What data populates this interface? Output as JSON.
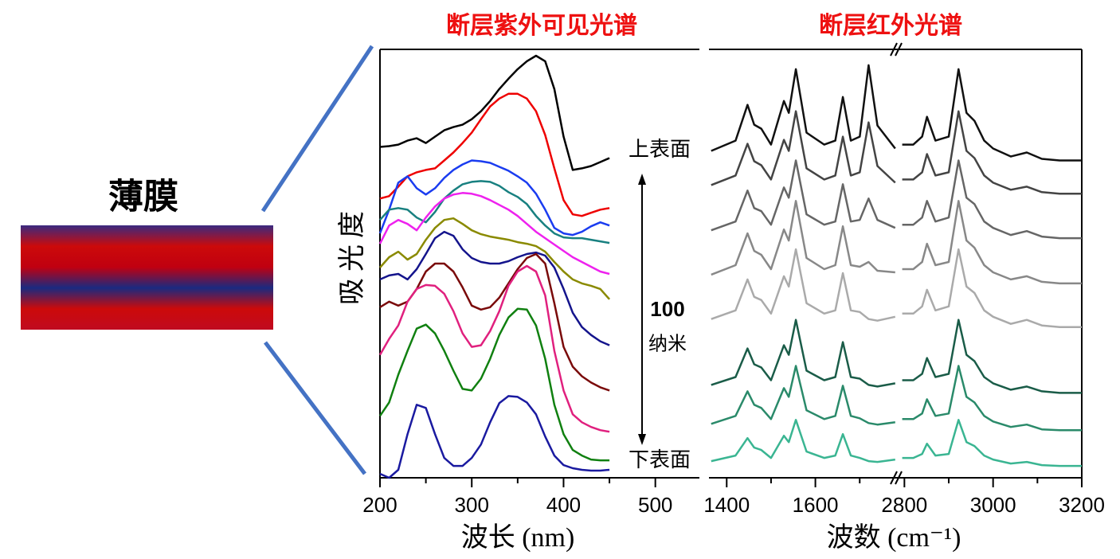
{
  "film_label": "薄膜",
  "chart_data": [
    {
      "type": "line",
      "title": "断层紫外可见光谱",
      "xlabel": "波长 (nm)",
      "ylabel": "吸光度",
      "annotations": [
        "上表面",
        "下表面",
        "100",
        "纳米"
      ],
      "xlim": [
        200,
        548
      ],
      "xticks": [
        200,
        300,
        400,
        500
      ],
      "xminorticks": [
        250,
        350,
        450
      ],
      "ylim": [
        0,
        540
      ],
      "x": [
        200,
        210,
        220,
        230,
        240,
        250,
        260,
        270,
        280,
        290,
        300,
        310,
        320,
        330,
        340,
        350,
        360,
        370,
        380,
        390,
        400,
        410,
        420,
        430,
        440,
        450
      ],
      "series": [
        {
          "color": "#000000",
          "values": [
            417,
            418,
            420,
            425,
            428,
            422,
            430,
            438,
            442,
            445,
            452,
            462,
            475,
            490,
            503,
            515,
            525,
            532,
            525,
            490,
            430,
            388,
            390,
            393,
            398,
            403
          ]
        },
        {
          "color": "#ee0000",
          "values": [
            352,
            355,
            367,
            380,
            385,
            388,
            390,
            400,
            410,
            422,
            435,
            452,
            468,
            478,
            484,
            484,
            478,
            462,
            432,
            390,
            350,
            332,
            330,
            334,
            338,
            340
          ]
        },
        {
          "color": "#1a3cf0",
          "values": [
            308,
            338,
            372,
            380,
            365,
            357,
            365,
            378,
            388,
            395,
            400,
            399,
            397,
            392,
            387,
            380,
            372,
            358,
            338,
            315,
            308,
            306,
            310,
            317,
            322,
            318
          ]
        },
        {
          "color": "#188080",
          "values": [
            325,
            338,
            340,
            338,
            328,
            322,
            335,
            352,
            362,
            370,
            373,
            374,
            373,
            368,
            360,
            354,
            345,
            330,
            318,
            308,
            303,
            302,
            302,
            300,
            298,
            296
          ]
        },
        {
          "color": "#ee22ee",
          "values": [
            295,
            318,
            325,
            320,
            312,
            328,
            342,
            352,
            357,
            359,
            358,
            355,
            350,
            344,
            338,
            330,
            320,
            310,
            302,
            294,
            286,
            278,
            272,
            266,
            260,
            257
          ]
        },
        {
          "color": "#8a8a00",
          "values": [
            265,
            278,
            285,
            275,
            282,
            300,
            315,
            325,
            327,
            320,
            312,
            307,
            304,
            302,
            300,
            297,
            295,
            292,
            285,
            272,
            260,
            250,
            245,
            242,
            238,
            225
          ]
        },
        {
          "color": "#14148c",
          "values": [
            250,
            255,
            257,
            250,
            263,
            282,
            302,
            310,
            305,
            288,
            277,
            272,
            270,
            270,
            273,
            278,
            282,
            284,
            280,
            265,
            238,
            208,
            190,
            180,
            172,
            167
          ]
        },
        {
          "color": "#7a0a0a",
          "values": [
            215,
            222,
            217,
            222,
            238,
            260,
            270,
            270,
            260,
            240,
            217,
            212,
            215,
            227,
            245,
            263,
            277,
            282,
            270,
            220,
            165,
            140,
            128,
            120,
            114,
            110
          ]
        },
        {
          "color": "#e0207e",
          "values": [
            155,
            175,
            192,
            222,
            238,
            243,
            242,
            232,
            210,
            182,
            165,
            167,
            185,
            210,
            242,
            260,
            267,
            260,
            230,
            160,
            110,
            80,
            70,
            64,
            60,
            58
          ]
        },
        {
          "color": "#108010",
          "values": [
            78,
            95,
            130,
            160,
            188,
            193,
            182,
            160,
            135,
            112,
            110,
            125,
            150,
            180,
            202,
            213,
            212,
            192,
            150,
            92,
            55,
            35,
            28,
            23,
            22,
            22
          ]
        },
        {
          "color": "#1a1aa0",
          "values": [
            5,
            0,
            10,
            55,
            92,
            88,
            55,
            25,
            15,
            15,
            25,
            42,
            70,
            94,
            103,
            102,
            95,
            80,
            52,
            28,
            16,
            12,
            10,
            9,
            9,
            10
          ]
        }
      ]
    },
    {
      "type": "line",
      "title": "断层红外光谱",
      "xlabel": "波数 (cm⁻¹)",
      "xlim": [
        1360,
        3200
      ],
      "xbreak": [
        1780,
        2790
      ],
      "xticks": [
        1400,
        1600,
        2800,
        3000,
        3200
      ],
      "xminorticks": [
        1500,
        1700,
        2900,
        3100
      ],
      "ylim": [
        0,
        540
      ],
      "x": [
        1365,
        1420,
        1447,
        1462,
        1478,
        1500,
        1529,
        1540,
        1556,
        1580,
        1620,
        1645,
        1662,
        1680,
        1700,
        1720,
        1740,
        1780,
        2795,
        2820,
        2840,
        2851,
        2870,
        2900,
        2922,
        2940,
        2958,
        2980,
        3000,
        3040,
        3076,
        3110,
        3150,
        3200
      ],
      "series": [
        {
          "color": "#111111",
          "values": [
            412,
            425,
            470,
            445,
            440,
            420,
            475,
            460,
            515,
            435,
            420,
            425,
            480,
            425,
            430,
            520,
            444,
            415,
            420,
            420,
            430,
            455,
            425,
            430,
            515,
            460,
            450,
            425,
            415,
            405,
            410,
            402,
            400,
            400
          ]
        },
        {
          "color": "#444444",
          "values": [
            369,
            381,
            421,
            399,
            394,
            376,
            426,
            412,
            462,
            390,
            376,
            381,
            430,
            381,
            385,
            448,
            393,
            372,
            376,
            376,
            385,
            408,
            381,
            385,
            462,
            412,
            403,
            381,
            372,
            363,
            367,
            360,
            358,
            358
          ]
        },
        {
          "color": "#666666",
          "values": [
            312,
            323,
            362,
            340,
            336,
            319,
            366,
            353,
            400,
            332,
            319,
            323,
            370,
            323,
            325,
            352,
            325,
            315,
            319,
            319,
            328,
            349,
            323,
            328,
            400,
            353,
            345,
            323,
            315,
            306,
            311,
            304,
            302,
            302
          ]
        },
        {
          "color": "#888888",
          "values": [
            256,
            268,
            308,
            286,
            281,
            263,
            313,
            299,
            349,
            277,
            263,
            268,
            317,
            268,
            266,
            272,
            261,
            259,
            263,
            263,
            272,
            295,
            268,
            272,
            349,
            299,
            290,
            268,
            259,
            250,
            254,
            247,
            245,
            245
          ]
        },
        {
          "color": "#aaaaaa",
          "values": [
            200,
            211,
            250,
            228,
            224,
            207,
            254,
            241,
            288,
            220,
            207,
            211,
            258,
            211,
            209,
            200,
            198,
            203,
            207,
            207,
            216,
            237,
            211,
            216,
            288,
            241,
            233,
            211,
            203,
            194,
            199,
            192,
            190,
            190
          ]
        },
        {
          "color": "#1a5c48",
          "values": [
            117,
            127,
            163,
            143,
            139,
            123,
            167,
            155,
            199,
            135,
            123,
            127,
            171,
            127,
            125,
            117,
            115,
            119,
            123,
            123,
            131,
            151,
            127,
            131,
            199,
            155,
            147,
            127,
            119,
            111,
            115,
            109,
            107,
            107
          ]
        },
        {
          "color": "#2a8a6a",
          "values": [
            68,
            78,
            109,
            92,
            88,
            74,
            113,
            102,
            141,
            85,
            74,
            78,
            116,
            78,
            75,
            69,
            67,
            70,
            74,
            74,
            81,
            99,
            78,
            81,
            141,
            102,
            95,
            78,
            71,
            64,
            67,
            61,
            60,
            60
          ]
        },
        {
          "color": "#3ab592",
          "values": [
            21,
            28,
            50,
            38,
            35,
            25,
            53,
            45,
            73,
            33,
            25,
            28,
            55,
            28,
            25,
            21,
            20,
            23,
            25,
            25,
            30,
            43,
            28,
            30,
            73,
            45,
            40,
            28,
            23,
            18,
            20,
            16,
            15,
            15
          ]
        }
      ]
    }
  ]
}
